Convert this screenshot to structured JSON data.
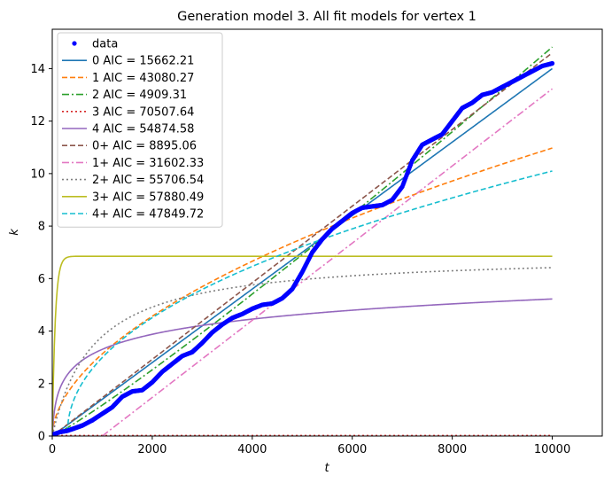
{
  "chart_data": {
    "type": "line",
    "title": "Generation model 3. All fit models for vertex 1",
    "xlabel": "t",
    "ylabel": "k",
    "xlim": [
      0,
      11000
    ],
    "ylim": [
      0,
      15.5
    ],
    "xticks": [
      0,
      2000,
      4000,
      6000,
      8000,
      10000
    ],
    "xtick_labels": [
      "0",
      "2000",
      "4000",
      "6000",
      "8000",
      "10000"
    ],
    "yticks": [
      0,
      2,
      4,
      6,
      8,
      10,
      12,
      14
    ],
    "ytick_labels": [
      "0",
      "2",
      "4",
      "6",
      "8",
      "10",
      "12",
      "14"
    ],
    "grid": false,
    "legend_position": "upper-left",
    "data_points": {
      "name": "data",
      "color": "#0000ff",
      "x": [
        0,
        150,
        300,
        450,
        600,
        800,
        1000,
        1200,
        1400,
        1600,
        1800,
        2000,
        2200,
        2400,
        2600,
        2800,
        3000,
        3200,
        3400,
        3600,
        3800,
        4000,
        4200,
        4400,
        4600,
        4800,
        5000,
        5200,
        5400,
        5600,
        5800,
        6000,
        6200,
        6400,
        6600,
        6800,
        7000,
        7200,
        7400,
        7600,
        7800,
        8000,
        8200,
        8400,
        8600,
        8800,
        9000,
        9200,
        9400,
        9600,
        9800,
        10000
      ],
      "y": [
        0.05,
        0.15,
        0.2,
        0.3,
        0.4,
        0.6,
        0.85,
        1.1,
        1.5,
        1.7,
        1.75,
        2.05,
        2.45,
        2.75,
        3.05,
        3.2,
        3.55,
        3.95,
        4.25,
        4.5,
        4.65,
        4.85,
        5.0,
        5.05,
        5.25,
        5.6,
        6.25,
        7.0,
        7.5,
        7.9,
        8.2,
        8.5,
        8.7,
        8.75,
        8.8,
        9.0,
        9.5,
        10.5,
        11.1,
        11.3,
        11.5,
        12.0,
        12.5,
        12.7,
        13.0,
        13.1,
        13.3,
        13.5,
        13.7,
        13.9,
        14.1,
        14.2
      ]
    },
    "series": [
      {
        "name": "0 AIC = 15662.21",
        "color": "#1f77b4",
        "dash": "solid",
        "model": "linear",
        "params": [
          0.0014,
          0
        ]
      },
      {
        "name": "1 AIC = 43080.27",
        "color": "#ff7f0e",
        "dash": "dashed",
        "model": "power",
        "params": [
          0.0725,
          0.545
        ]
      },
      {
        "name": "2 AIC = 4909.31",
        "color": "#2ca02c",
        "dash": "dashdot",
        "model": "power",
        "params": [
          0.00059,
          1.1
        ]
      },
      {
        "name": "3 AIC = 70507.64",
        "color": "#d62728",
        "dash": "dotted",
        "model": "constant",
        "params": [
          0.02
        ]
      },
      {
        "name": "4 AIC = 54874.58",
        "color": "#9467bd",
        "dash": "solid",
        "model": "log",
        "params": [
          0.84,
          0.05
        ]
      },
      {
        "name": "0+ AIC = 8895.06",
        "color": "#8c564b",
        "dash": "dashed",
        "model": "linear",
        "params": [
          0.00146,
          0
        ]
      },
      {
        "name": "1+ AIC = 31602.33",
        "color": "#e377c2",
        "dash": "dashdot",
        "model": "shifted_linear",
        "params": [
          0.00147,
          1000
        ]
      },
      {
        "name": "2+ AIC = 55706.54",
        "color": "#7f7f7f",
        "dash": "dotted",
        "model": "saturating",
        "params": [
          6.95,
          8.3
        ]
      },
      {
        "name": "3+ AIC = 57880.49",
        "color": "#bcbd22",
        "dash": "solid",
        "model": "exp_saturation",
        "params": [
          6.85,
          0.017
        ]
      },
      {
        "name": "4+ AIC = 47849.72",
        "color": "#17becf",
        "dash": "dashed",
        "model": "shifted_power",
        "params": [
          0.144,
          0.463,
          300
        ]
      }
    ]
  }
}
